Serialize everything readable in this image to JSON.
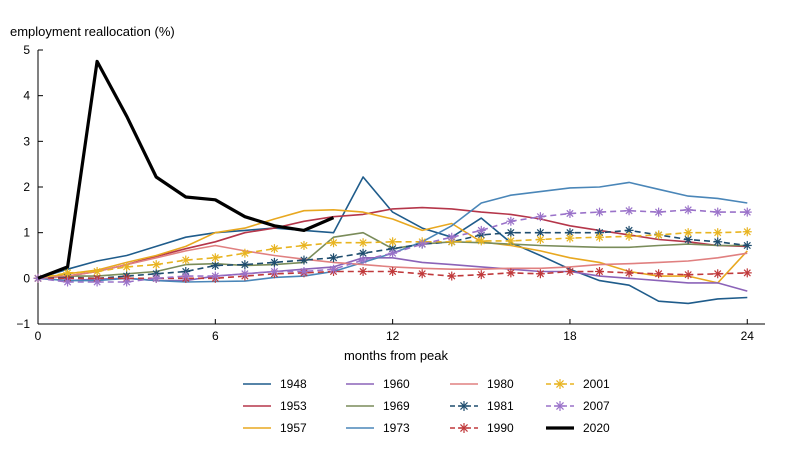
{
  "chart_data": {
    "type": "line",
    "title": "",
    "ylabel": "employment reallocation (%)",
    "xlabel": "months from peak",
    "xlim": [
      0,
      24.6
    ],
    "ylim": [
      -1,
      5
    ],
    "xticks": [
      0,
      6,
      12,
      18,
      24
    ],
    "xtick_labels": [
      "0",
      "6",
      "12",
      "18",
      "24"
    ],
    "yticks": [
      -1,
      0,
      1,
      2,
      3,
      4,
      5
    ],
    "ytick_labels": [
      "−1",
      "0",
      "1",
      "2",
      "3",
      "4",
      "5"
    ],
    "grid": false,
    "legend": "bottom",
    "series": [
      {
        "name": "1948",
        "color": "#1f5c8b",
        "style": "solid",
        "marker": "none",
        "width": 1.6,
        "x": [
          0,
          1,
          2,
          3,
          4,
          5,
          6,
          7,
          8,
          9,
          10,
          11,
          12,
          13,
          14,
          15,
          16,
          17,
          18,
          19,
          20,
          21,
          22,
          23,
          24
        ],
        "y": [
          0,
          0.2,
          0.38,
          0.5,
          0.7,
          0.9,
          1.0,
          1.05,
          1.1,
          1.05,
          1.0,
          2.22,
          1.45,
          1.1,
          0.9,
          1.32,
          0.78,
          0.5,
          0.2,
          -0.05,
          -0.15,
          -0.5,
          -0.55,
          -0.45,
          -0.42
        ]
      },
      {
        "name": "1953",
        "color": "#b5364a",
        "style": "solid",
        "marker": "none",
        "width": 1.6,
        "x": [
          0,
          1,
          2,
          3,
          4,
          5,
          6,
          7,
          8,
          9,
          10,
          11,
          12,
          13,
          14,
          15,
          16,
          17,
          18,
          19,
          20,
          21,
          22,
          23,
          24
        ],
        "y": [
          0,
          0.05,
          0.15,
          0.3,
          0.48,
          0.65,
          0.8,
          1.0,
          1.1,
          1.25,
          1.35,
          1.4,
          1.52,
          1.55,
          1.52,
          1.45,
          1.4,
          1.3,
          1.15,
          1.05,
          0.95,
          0.85,
          0.8,
          0.72,
          0.7
        ]
      },
      {
        "name": "1957",
        "color": "#e8a820",
        "style": "solid",
        "marker": "none",
        "width": 1.6,
        "x": [
          0,
          1,
          2,
          3,
          4,
          5,
          6,
          7,
          8,
          9,
          10,
          11,
          12,
          13,
          14,
          15,
          16,
          17,
          18,
          19,
          20,
          21,
          22,
          23,
          24
        ],
        "y": [
          0,
          0.1,
          0.18,
          0.35,
          0.5,
          0.7,
          1.0,
          1.1,
          1.3,
          1.48,
          1.5,
          1.45,
          1.3,
          1.05,
          1.2,
          0.8,
          0.72,
          0.6,
          0.45,
          0.35,
          0.15,
          0.05,
          0.05,
          -0.1,
          0.6
        ]
      },
      {
        "name": "1960",
        "color": "#8b63b8",
        "style": "solid",
        "marker": "none",
        "width": 1.6,
        "x": [
          0,
          1,
          2,
          3,
          4,
          5,
          6,
          7,
          8,
          9,
          10,
          11,
          12,
          13,
          14,
          15,
          16,
          17,
          18,
          19,
          20,
          21,
          22,
          23,
          24
        ],
        "y": [
          0,
          -0.05,
          -0.02,
          0,
          -0.05,
          -0.05,
          0.05,
          0.1,
          0.15,
          0.2,
          0.25,
          0.45,
          0.45,
          0.35,
          0.3,
          0.25,
          0.2,
          0.15,
          0.15,
          0.05,
          0,
          -0.05,
          -0.1,
          -0.1,
          -0.28
        ]
      },
      {
        "name": "1969",
        "color": "#7a8c5a",
        "style": "solid",
        "marker": "none",
        "width": 1.6,
        "x": [
          0,
          1,
          2,
          3,
          4,
          5,
          6,
          7,
          8,
          9,
          10,
          11,
          12,
          13,
          14,
          15,
          16,
          17,
          18,
          19,
          20,
          21,
          22,
          23,
          24
        ],
        "y": [
          0,
          0.05,
          0.05,
          0.1,
          0.15,
          0.3,
          0.32,
          0.28,
          0.3,
          0.35,
          0.9,
          1.0,
          0.65,
          0.75,
          0.8,
          0.78,
          0.75,
          0.72,
          0.7,
          0.68,
          0.68,
          0.72,
          0.75,
          0.72,
          0.72
        ]
      },
      {
        "name": "1973",
        "color": "#4a86b8",
        "style": "solid",
        "marker": "none",
        "width": 1.6,
        "x": [
          0,
          1,
          2,
          3,
          4,
          5,
          6,
          7,
          8,
          9,
          10,
          11,
          12,
          13,
          14,
          15,
          16,
          17,
          18,
          19,
          20,
          21,
          22,
          23,
          24
        ],
        "y": [
          0,
          -0.05,
          -0.05,
          0,
          -0.05,
          -0.08,
          -0.07,
          -0.06,
          0.02,
          0.05,
          0.15,
          0.35,
          0.55,
          0.8,
          1.15,
          1.65,
          1.82,
          1.9,
          1.98,
          2.0,
          2.1,
          1.95,
          1.8,
          1.75,
          1.65
        ]
      },
      {
        "name": "1980",
        "color": "#e08080",
        "style": "solid",
        "marker": "none",
        "width": 1.6,
        "x": [
          0,
          1,
          2,
          3,
          4,
          5,
          6,
          7,
          8,
          9,
          10,
          11,
          12,
          13,
          14,
          15,
          16,
          17,
          18,
          19,
          20,
          21,
          22,
          23,
          24
        ],
        "y": [
          0,
          0.05,
          0.15,
          0.3,
          0.45,
          0.6,
          0.72,
          0.6,
          0.5,
          0.42,
          0.35,
          0.3,
          0.25,
          0.22,
          0.2,
          0.2,
          0.22,
          0.22,
          0.25,
          0.3,
          0.32,
          0.35,
          0.38,
          0.45,
          0.55
        ]
      },
      {
        "name": "1981",
        "color": "#1f4d6e",
        "style": "dashed",
        "marker": "asterisk",
        "width": 1.6,
        "x": [
          0,
          1,
          2,
          3,
          4,
          5,
          6,
          7,
          8,
          9,
          10,
          11,
          12,
          13,
          14,
          15,
          16,
          17,
          18,
          19,
          20,
          21,
          22,
          23,
          24
        ],
        "y": [
          0,
          0.02,
          0,
          0.05,
          0.1,
          0.15,
          0.28,
          0.3,
          0.35,
          0.4,
          0.45,
          0.55,
          0.65,
          0.75,
          0.8,
          0.95,
          1.0,
          1.0,
          1.0,
          1.0,
          1.05,
          0.95,
          0.85,
          0.8,
          0.72
        ]
      },
      {
        "name": "1990",
        "color": "#c0393b",
        "style": "dashed",
        "marker": "asterisk",
        "width": 1.6,
        "x": [
          0,
          1,
          2,
          3,
          4,
          5,
          6,
          7,
          8,
          9,
          10,
          11,
          12,
          13,
          14,
          15,
          16,
          17,
          18,
          19,
          20,
          21,
          22,
          23,
          24
        ],
        "y": [
          0,
          0,
          0,
          0,
          0,
          0,
          0,
          0.05,
          0.1,
          0.12,
          0.15,
          0.15,
          0.15,
          0.1,
          0.05,
          0.08,
          0.12,
          0.1,
          0.15,
          0.15,
          0.12,
          0.1,
          0.08,
          0.1,
          0.12
        ]
      },
      {
        "name": "2001",
        "color": "#e8b420",
        "style": "dashed",
        "marker": "asterisk",
        "width": 1.6,
        "x": [
          0,
          1,
          2,
          3,
          4,
          5,
          6,
          7,
          8,
          9,
          10,
          11,
          12,
          13,
          14,
          15,
          16,
          17,
          18,
          19,
          20,
          21,
          22,
          23,
          24
        ],
        "y": [
          0,
          0.12,
          0.15,
          0.25,
          0.3,
          0.4,
          0.45,
          0.55,
          0.65,
          0.72,
          0.78,
          0.78,
          0.8,
          0.8,
          0.8,
          0.82,
          0.82,
          0.85,
          0.88,
          0.9,
          0.92,
          0.95,
          1.0,
          1.0,
          1.02
        ]
      },
      {
        "name": "2007",
        "color": "#9a72c9",
        "style": "dashed",
        "marker": "asterisk",
        "width": 1.6,
        "x": [
          0,
          1,
          2,
          3,
          4,
          5,
          6,
          7,
          8,
          9,
          10,
          11,
          12,
          13,
          14,
          15,
          16,
          17,
          18,
          19,
          20,
          21,
          22,
          23,
          24
        ],
        "y": [
          0,
          -0.08,
          -0.08,
          -0.08,
          0,
          0.05,
          0.05,
          0.1,
          0.15,
          0.15,
          0.2,
          0.4,
          0.55,
          0.75,
          0.9,
          1.05,
          1.25,
          1.35,
          1.42,
          1.45,
          1.48,
          1.45,
          1.5,
          1.45,
          1.45
        ]
      },
      {
        "name": "2020",
        "color": "#000000",
        "style": "solid",
        "marker": "none",
        "width": 3.2,
        "x": [
          0,
          1,
          2,
          3,
          4,
          5,
          6,
          7,
          8,
          9,
          10
        ],
        "y": [
          0,
          0.25,
          4.75,
          3.55,
          2.22,
          1.78,
          1.72,
          1.35,
          1.15,
          1.05,
          1.33
        ]
      }
    ]
  }
}
